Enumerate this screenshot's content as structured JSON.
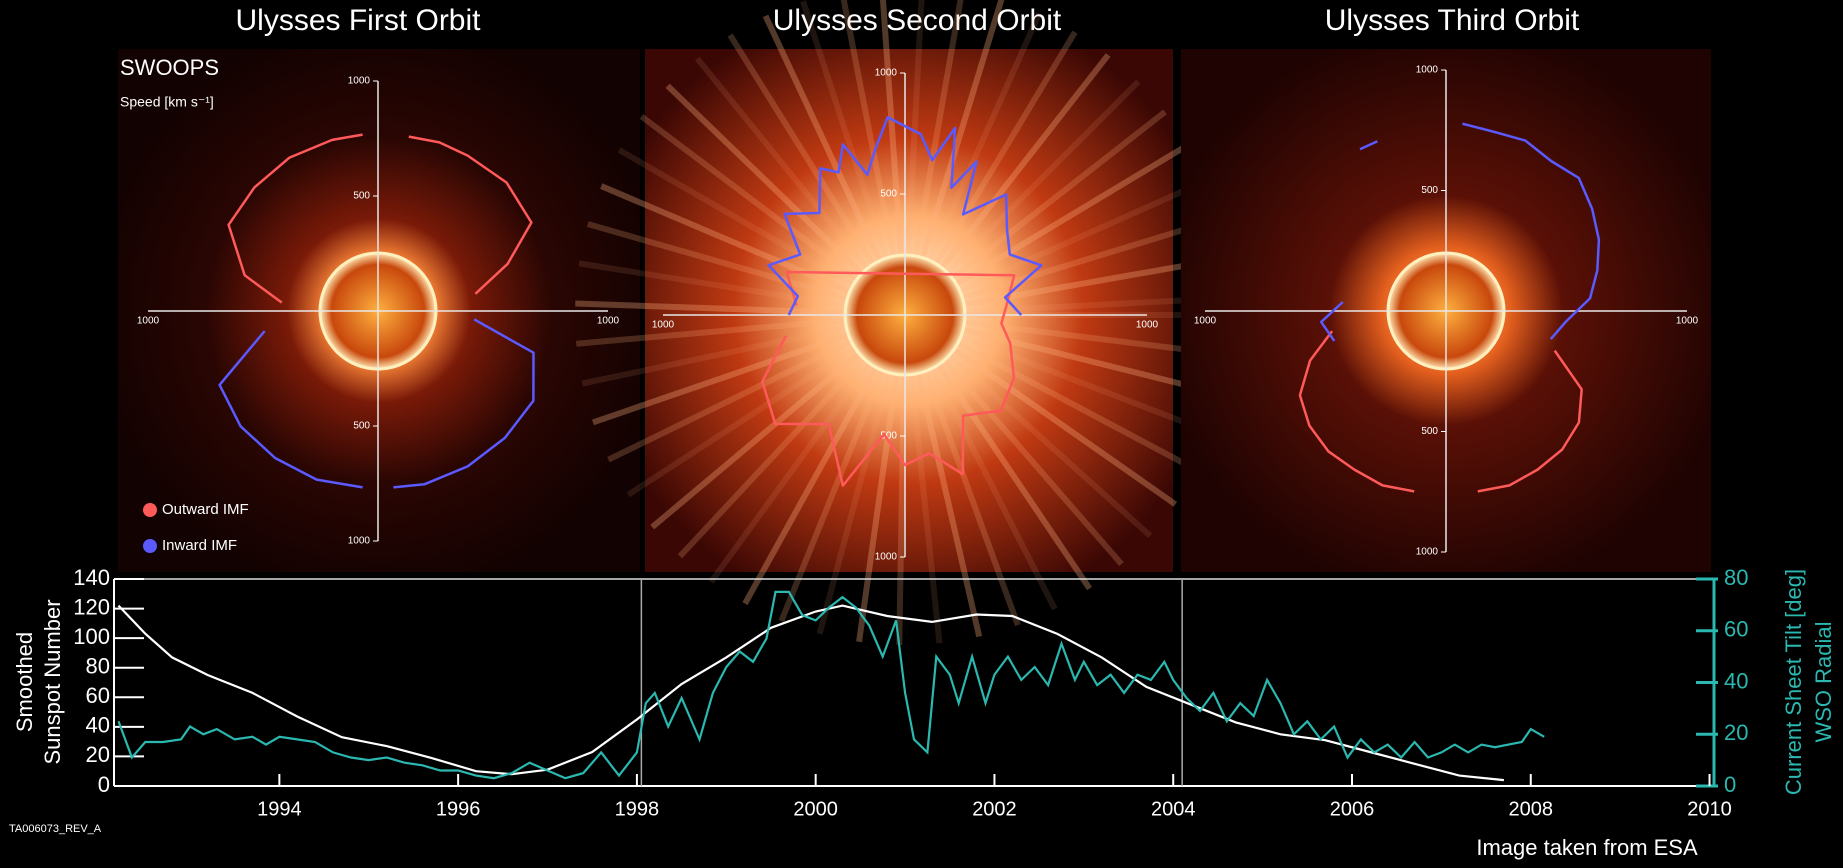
{
  "chart_data": [
    {
      "type": "polar",
      "rlim": [
        0,
        1000
      ],
      "rticks": [
        500,
        1000
      ],
      "instrument": "SWOOPS",
      "rlabel": "Speed [km s⁻¹]",
      "legend": [
        {
          "name": "Outward IMF",
          "color": "#ff5a5a"
        },
        {
          "name": "Inward IMF",
          "color": "#5a5aff"
        }
      ],
      "panels": [
        {
          "title": "Ulysses First Orbit",
          "series": [
            {
              "angles": [
                175,
                165,
                150,
                135,
                120,
                105,
                95,
                null,
                80,
                70,
                60,
                45,
                30,
                20,
                10
              ],
              "speeds": [
                420,
                600,
                750,
                760,
                770,
                770,
                770,
                null,
                770,
                780,
                780,
                790,
                770,
                600,
                430
              ]
            },
            {
              "angles": [
                -5,
                -15,
                -30,
                -45,
                -60,
                -75,
                -85,
                null,
                -95,
                -110,
                -125,
                -140,
                -155,
                -170
              ],
              "speeds": [
                420,
                700,
                780,
                780,
                780,
                780,
                770,
                null,
                770,
                780,
                780,
                780,
                760,
                500
              ]
            }
          ]
        },
        {
          "title": "Ulysses Second Orbit",
          "series": [
            {
              "angles": [
                -170,
                -155,
                -140,
                -125,
                -110,
                -100,
                -90,
                -80,
                -70,
                -60,
                -45,
                -30,
                -15,
                -5,
                5,
                20,
                160,
                175
              ],
              "speeds": [
                500,
                650,
                700,
                550,
                750,
                500,
                620,
                580,
                700,
                480,
                560,
                520,
                450,
                400,
                420,
                480,
                520,
                450
              ]
            },
            {
              "angles": [
                0,
                10,
                20,
                30,
                40,
                50,
                60,
                65,
                70,
                75,
                80,
                85,
                95,
                100,
                105,
                110,
                115,
                120,
                130,
                140,
                150,
                160,
                170,
                180
              ],
              "speeds": [
                480,
                420,
                600,
                500,
                550,
                650,
                480,
                700,
                560,
                800,
                650,
                750,
                820,
                700,
                600,
                750,
                650,
                700,
                550,
                650,
                500,
                600,
                450,
                480
              ]
            }
          ]
        },
        {
          "title": "Ulysses Third Orbit",
          "series": [
            {
              "angles": [
                -20,
                -30,
                -40,
                -50,
                -60,
                -70,
                -80,
                null,
                -100,
                -110,
                -120,
                -130,
                -140,
                -150,
                -160,
                -170
              ],
              "speeds": [
                480,
                650,
                720,
                750,
                760,
                770,
                760,
                null,
                760,
                770,
                760,
                760,
                740,
                700,
                600,
                480
              ]
            },
            {
              "angles": [
                118,
                112,
                null,
                85,
                75,
                65,
                55,
                45,
                35,
                25,
                15,
                5,
                -5,
                -15,
                null,
                175,
                185,
                195
              ],
              "speeds": [
                760,
                760,
                null,
                780,
                770,
                780,
                760,
                780,
                740,
                700,
                650,
                600,
                500,
                450,
                null,
                430,
                520,
                480
              ]
            }
          ]
        }
      ]
    },
    {
      "type": "line",
      "xlim": [
        1992.15,
        2010.05
      ],
      "xticks": [
        1994,
        1996,
        1998,
        2000,
        2002,
        2004,
        2006,
        2008,
        2010
      ],
      "ylim": [
        0,
        140
      ],
      "yticks": [
        0,
        20,
        40,
        60,
        80,
        100,
        120,
        140
      ],
      "ylabel": [
        "Smoothed",
        "Sunspot Number"
      ],
      "y2lim": [
        0,
        80
      ],
      "y2ticks": [
        0,
        20,
        40,
        60,
        80
      ],
      "y2label": [
        "Current Sheet Tilt [deg]",
        "WSO Radial"
      ],
      "orbit_boundaries": [
        1998.05,
        2004.1
      ],
      "series": [
        {
          "color": "#ffffff",
          "axis": "y",
          "x": [
            1992.2,
            1992.5,
            1992.8,
            1993.2,
            1993.7,
            1994.2,
            1994.7,
            1995.2,
            1995.7,
            1996.2,
            1996.6,
            1997.0,
            1997.5,
            1998.0,
            1998.5,
            1999.0,
            1999.5,
            2000.0,
            2000.3,
            2000.8,
            2001.3,
            2001.8,
            2002.2,
            2002.7,
            2003.2,
            2003.7,
            2004.2,
            2004.7,
            2005.2,
            2005.7,
            2006.2,
            2006.7,
            2007.2,
            2007.7
          ],
          "values": [
            122,
            103,
            87,
            75,
            63,
            47,
            33,
            27,
            19,
            10,
            8,
            11,
            23,
            45,
            69,
            87,
            107,
            118,
            122,
            115,
            111,
            116,
            115,
            103,
            87,
            67,
            55,
            43,
            35,
            31,
            23,
            15,
            7,
            4
          ]
        },
        {
          "color": "#2ab8b0",
          "axis": "y2",
          "x": [
            1992.2,
            1992.35,
            1992.5,
            1992.7,
            1992.9,
            1993.0,
            1993.15,
            1993.3,
            1993.5,
            1993.7,
            1993.85,
            1994.0,
            1994.2,
            1994.4,
            1994.6,
            1994.8,
            1995.0,
            1995.2,
            1995.4,
            1995.6,
            1995.8,
            1996.0,
            1996.2,
            1996.4,
            1996.6,
            1996.8,
            1997.0,
            1997.2,
            1997.4,
            1997.6,
            1997.8,
            1998.0,
            1998.1,
            1998.2,
            1998.35,
            1998.5,
            1998.7,
            1998.85,
            1999.0,
            1999.15,
            1999.3,
            1999.45,
            1999.55,
            1999.7,
            1999.85,
            2000.0,
            2000.15,
            2000.3,
            2000.45,
            2000.6,
            2000.75,
            2000.9,
            2001.0,
            2001.1,
            2001.25,
            2001.35,
            2001.5,
            2001.6,
            2001.75,
            2001.9,
            2002.0,
            2002.15,
            2002.3,
            2002.45,
            2002.6,
            2002.75,
            2002.9,
            2003.0,
            2003.15,
            2003.3,
            2003.45,
            2003.6,
            2003.75,
            2003.9,
            2004.0,
            2004.15,
            2004.3,
            2004.45,
            2004.6,
            2004.75,
            2004.9,
            2005.05,
            2005.2,
            2005.35,
            2005.5,
            2005.65,
            2005.8,
            2005.95,
            2006.1,
            2006.25,
            2006.4,
            2006.55,
            2006.7,
            2006.85,
            2007.0,
            2007.15,
            2007.3,
            2007.45,
            2007.6,
            2007.75,
            2007.9,
            2008.0,
            2008.15
          ],
          "values": [
            25,
            11,
            17,
            17,
            18,
            23,
            20,
            22,
            18,
            19,
            16,
            19,
            18,
            17,
            13,
            11,
            10,
            11,
            9,
            8,
            6,
            6,
            4,
            3,
            5,
            9,
            6,
            3,
            5,
            13,
            4,
            13,
            32,
            36,
            23,
            34,
            18,
            36,
            46,
            52,
            48,
            57,
            75,
            75,
            66,
            64,
            69,
            73,
            69,
            62,
            50,
            64,
            36,
            18,
            13,
            50,
            43,
            32,
            50,
            32,
            43,
            50,
            41,
            46,
            39,
            55,
            41,
            48,
            39,
            43,
            36,
            43,
            41,
            48,
            41,
            34,
            29,
            36,
            25,
            32,
            27,
            41,
            32,
            20,
            25,
            18,
            23,
            11,
            18,
            13,
            16,
            11,
            17,
            11,
            13,
            16,
            13,
            16,
            15,
            16,
            17,
            22,
            19
          ]
        }
      ]
    }
  ],
  "figure_id": "TA006073_REV_A",
  "credit": "Image taken from ESA"
}
